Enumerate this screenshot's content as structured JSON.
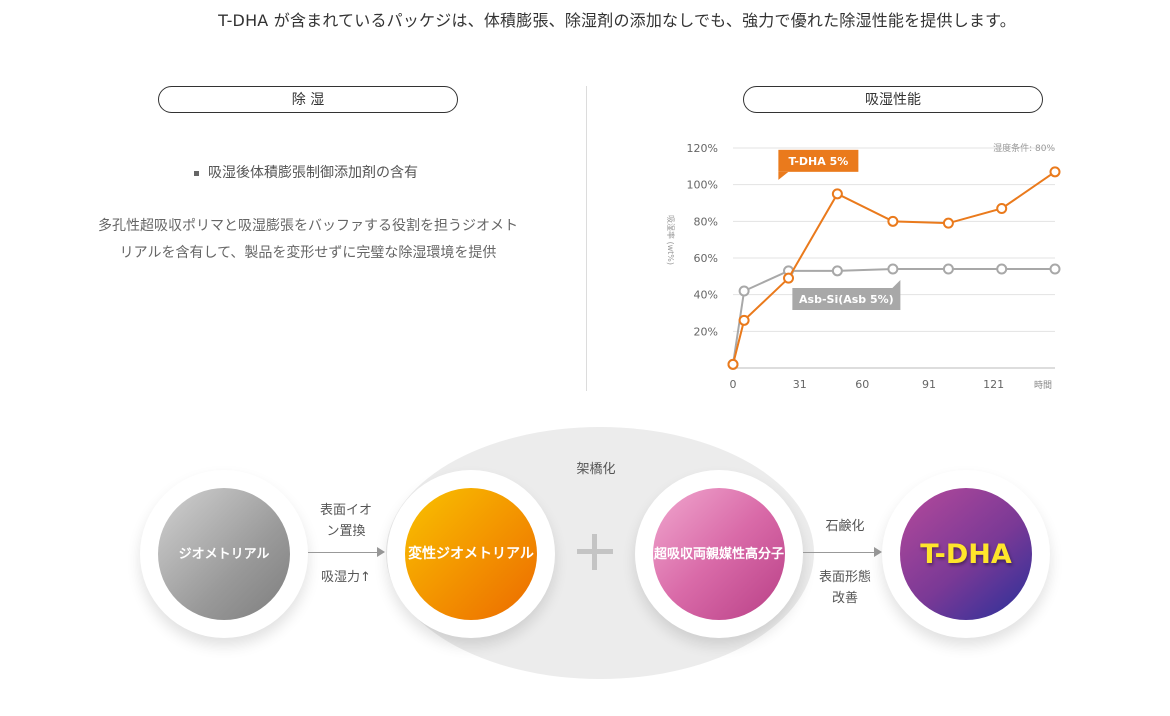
{
  "headline": "T-DHA が含まれているパッケジは、体積膨張、除湿剤の添加なしでも、強力で優れた除湿性能を提供します。",
  "left_panel": {
    "title": "除 湿",
    "bullet": "吸湿後体積膨張制御添加剤の含有",
    "desc_line1": "多孔性超吸収ポリマと吸湿膨張をバッファする役割を担うジオメト",
    "desc_line2": "リアルを含有して、製品を変形せずに完璧な除湿環境を提供"
  },
  "right_panel": {
    "title": "吸湿性能"
  },
  "chart_data": {
    "type": "line",
    "condition_note": "湿度条件: 80%",
    "ylabel": "吸湿率 (wt%)",
    "x_tick_labels": [
      "0",
      "31",
      "60",
      "91",
      "121"
    ],
    "x_unit_label": "時間",
    "y_tick_labels": [
      "20%",
      "40%",
      "60%",
      "80%",
      "100%",
      "120%"
    ],
    "ylim": [
      0,
      120
    ],
    "grid": true,
    "series": [
      {
        "name": "T-DHA 5%",
        "color": "#ea7a1c",
        "x": [
          0,
          5,
          25,
          47,
          72,
          97,
          121,
          145
        ],
        "y": [
          2,
          26,
          49,
          95,
          80,
          79,
          87,
          107
        ]
      },
      {
        "name": "Asb-Si(Asb 5%)",
        "color": "#a8a8a8",
        "x": [
          0,
          5,
          25,
          47,
          72,
          97,
          121,
          145
        ],
        "y": [
          2,
          42,
          53,
          53,
          54,
          54,
          54,
          54
        ]
      }
    ]
  },
  "flow": {
    "crosslink_label": "架橋化",
    "node1": "ジオメトリアル",
    "node2": "変性ジオメトリアル",
    "node3": "超吸収両親媒性高分子",
    "node4": "T-DHA",
    "arrow1_top": "表面イオ\nン置換",
    "arrow1_bottom": "吸湿力↑",
    "arrow2_top": "石鹸化",
    "arrow2_bottom": "表面形態\n改善",
    "colors": {
      "orange": "#f39800",
      "pink": "#d96aa8",
      "purple": "#7a3996",
      "gray": "#9a9a9a"
    }
  }
}
